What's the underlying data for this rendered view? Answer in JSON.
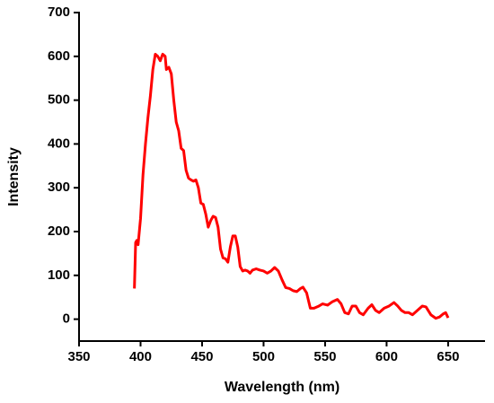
{
  "chart_data": {
    "type": "line",
    "x_label": "Wavelength (nm)",
    "y_label": "Intensity",
    "xlim": [
      350,
      680
    ],
    "xticks": [
      350,
      400,
      450,
      500,
      550,
      600,
      650
    ],
    "ylim": [
      -50,
      700
    ],
    "yticks": [
      0,
      100,
      200,
      300,
      400,
      500,
      600,
      700
    ],
    "grid": false,
    "series": [
      {
        "color": "#ff0000",
        "x": [
          395,
          396,
          397,
          398,
          400,
          402,
          404,
          406,
          408,
          410,
          412,
          414,
          416,
          418,
          420,
          421,
          423,
          425,
          427,
          429,
          431,
          433,
          435,
          437,
          439,
          441,
          443,
          445,
          447,
          449,
          451,
          453,
          455,
          457,
          459,
          461,
          463,
          465,
          467,
          469,
          471,
          473,
          475,
          477,
          479,
          481,
          483,
          485,
          487,
          489,
          491,
          494,
          497,
          500,
          503,
          506,
          509,
          512,
          515,
          518,
          521,
          524,
          527,
          530,
          532,
          535,
          538,
          541,
          545,
          548,
          552,
          556,
          560,
          563,
          566,
          569,
          572,
          575,
          578,
          581,
          585,
          588,
          591,
          594,
          598,
          602,
          606,
          609,
          612,
          615,
          618,
          621,
          625,
          629,
          632,
          636,
          640,
          643,
          646,
          648,
          650
        ],
        "values": [
          70,
          175,
          180,
          170,
          230,
          330,
          400,
          460,
          510,
          570,
          605,
          600,
          590,
          605,
          600,
          570,
          575,
          560,
          500,
          450,
          430,
          390,
          385,
          340,
          322,
          318,
          315,
          318,
          300,
          265,
          262,
          240,
          210,
          225,
          235,
          232,
          210,
          160,
          140,
          138,
          130,
          165,
          190,
          190,
          165,
          120,
          110,
          112,
          110,
          105,
          112,
          115,
          112,
          110,
          105,
          110,
          118,
          110,
          90,
          72,
          70,
          65,
          63,
          70,
          73,
          60,
          25,
          25,
          30,
          35,
          32,
          40,
          45,
          35,
          15,
          12,
          30,
          30,
          15,
          10,
          25,
          33,
          20,
          15,
          25,
          30,
          38,
          30,
          20,
          15,
          15,
          10,
          20,
          30,
          28,
          10,
          2,
          5,
          12,
          15,
          3
        ]
      }
    ]
  }
}
